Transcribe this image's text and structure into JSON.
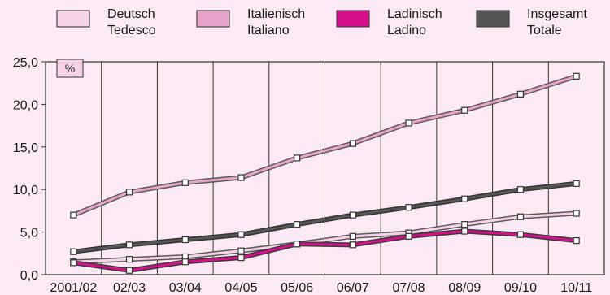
{
  "chart_data": {
    "type": "line",
    "title": "",
    "unit_label": "%",
    "xlabel": "",
    "ylabel": "",
    "categories": [
      "2001/02",
      "02/03",
      "03/04",
      "04/05",
      "05/06",
      "06/07",
      "07/08",
      "08/09",
      "09/10",
      "10/11"
    ],
    "ylim": [
      0,
      25
    ],
    "yticks": [
      "0,0",
      "5,0",
      "10,0",
      "15,0",
      "20,0",
      "25,0"
    ],
    "grid": "vertical-lines",
    "legend_position": "top",
    "series": [
      {
        "name": "Deutsch\nTedesco",
        "color": "#f6d3e6",
        "stroke": "#5a5a5a",
        "values": [
          1.5,
          1.8,
          2.1,
          2.8,
          3.6,
          4.5,
          4.9,
          5.9,
          6.8,
          7.2
        ]
      },
      {
        "name": "Italienisch\nItaliano",
        "color": "#e8a4c8",
        "stroke": "#5a5a5a",
        "values": [
          7.0,
          9.7,
          10.8,
          11.4,
          13.7,
          15.4,
          17.8,
          19.3,
          21.2,
          23.3
        ]
      },
      {
        "name": "Ladinisch\nLadino",
        "color": "#d60f8a",
        "stroke": "#3a3a3a",
        "values": [
          1.4,
          0.5,
          1.5,
          2.0,
          3.6,
          3.5,
          4.5,
          5.1,
          4.7,
          4.0
        ]
      },
      {
        "name": "Insgesamt\nTotale",
        "color": "#555555",
        "stroke": "#333333",
        "values": [
          2.7,
          3.5,
          4.1,
          4.7,
          5.9,
          7.0,
          7.9,
          8.9,
          10.0,
          10.7
        ]
      }
    ],
    "colors": {
      "background": "#fbe9f3",
      "grid": "#333333",
      "axis": "#333333"
    }
  }
}
